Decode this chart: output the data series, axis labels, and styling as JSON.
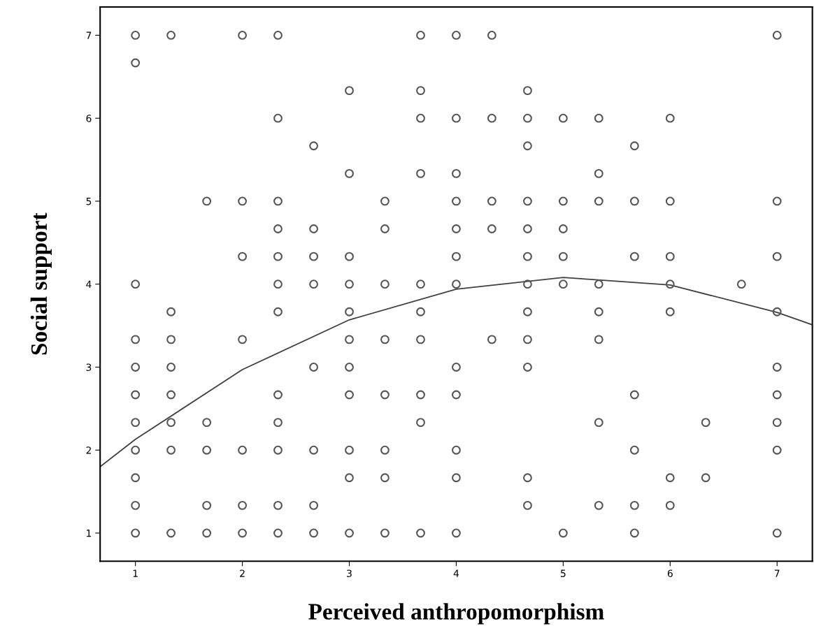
{
  "chart_data": {
    "type": "scatter",
    "xlabel": "Perceived anthropomorphism",
    "ylabel": "Social support",
    "xlim": [
      0.67,
      7.33
    ],
    "ylim": [
      0.66,
      7.34
    ],
    "xticks": [
      1,
      2,
      3,
      4,
      5,
      6,
      7
    ],
    "yticks": [
      1,
      2,
      3,
      4,
      5,
      6,
      7
    ],
    "grid": false,
    "legend": false,
    "marker": "circle",
    "series": [
      {
        "color": "#555555",
        "x": [
          1,
          1,
          1,
          1,
          1,
          1,
          1,
          1,
          1,
          1,
          1,
          1.333,
          1.333,
          1.333,
          1.333,
          1.333,
          1.333,
          1.333,
          1.333,
          1.667,
          1.667,
          1.667,
          1.667,
          1.667,
          2,
          2,
          2,
          2,
          2,
          2,
          2,
          2.333,
          2.333,
          2.333,
          2.333,
          2.333,
          2.333,
          2.333,
          2.333,
          2.333,
          2.333,
          2.333,
          2.333,
          2.667,
          2.667,
          2.667,
          2.667,
          2.667,
          2.667,
          2.667,
          2.667,
          3,
          3,
          3,
          3,
          3,
          3,
          3,
          3,
          3,
          3,
          3,
          3.333,
          3.333,
          3.333,
          3.333,
          3.333,
          3.333,
          3.333,
          3.333,
          3.667,
          3.667,
          3.667,
          3.667,
          3.667,
          3.667,
          3.667,
          3.667,
          3.667,
          3.667,
          4,
          4,
          4,
          4,
          4,
          4,
          4,
          4,
          4,
          4,
          4,
          4,
          4.333,
          4.333,
          4.333,
          4.333,
          4.333,
          4.667,
          4.667,
          4.667,
          4.667,
          4.667,
          4.667,
          4.667,
          4.667,
          4.667,
          4.667,
          4.667,
          4.667,
          5,
          5,
          5,
          5,
          5,
          5,
          5.333,
          5.333,
          5.333,
          5.333,
          5.333,
          5.333,
          5.333,
          5.333,
          5.667,
          5.667,
          5.667,
          5.667,
          5.667,
          5.667,
          5.667,
          6,
          6,
          6,
          6,
          6,
          6,
          6,
          6.333,
          6.333,
          6.667,
          7,
          7,
          7,
          7,
          7,
          7,
          7,
          7,
          7
        ],
        "values": [
          7,
          6.667,
          4,
          3.333,
          3,
          2.667,
          2.333,
          2,
          1.667,
          1.333,
          1,
          7,
          3.667,
          3.333,
          3,
          2.667,
          2.333,
          2,
          1,
          5,
          2.333,
          2,
          1.333,
          1,
          7,
          5,
          4.333,
          3.333,
          2,
          1.333,
          1,
          7,
          6,
          5,
          4.667,
          4.333,
          4,
          3.667,
          2.667,
          2.333,
          2,
          1.333,
          1,
          5.667,
          4.667,
          4.333,
          4,
          3,
          2,
          1.333,
          1,
          6.333,
          5.333,
          4.333,
          4,
          3.667,
          3.333,
          3,
          2.667,
          2,
          1.667,
          1,
          5,
          4.667,
          4,
          3.333,
          2.667,
          2,
          1.667,
          1,
          7,
          6.333,
          6,
          5.333,
          4,
          3.667,
          3.333,
          2.667,
          2.333,
          1,
          7,
          6,
          5.333,
          5,
          4.667,
          4.333,
          4,
          3,
          2.667,
          2,
          1.667,
          1,
          7,
          6,
          5,
          4.667,
          3.333,
          6.333,
          6,
          5.667,
          5,
          4.667,
          4.333,
          4,
          3.667,
          3.333,
          3,
          1.667,
          1.333,
          6,
          5,
          4.667,
          4.333,
          4,
          1,
          6,
          5.333,
          5,
          4,
          3.667,
          3.333,
          2.333,
          1.333,
          5.667,
          5,
          4.333,
          2.667,
          2,
          1.333,
          1,
          6,
          5,
          4.333,
          4,
          3.667,
          1.667,
          1.333,
          2.333,
          1.667,
          4,
          7,
          5,
          4.333,
          3.667,
          3,
          2.667,
          2.333,
          2,
          1
        ]
      },
      {
        "type": "line",
        "color": "#404040",
        "line_style": "solid",
        "marker": "none",
        "x": [
          0.67,
          1,
          2,
          3,
          4,
          5,
          6,
          7,
          7.33
        ],
        "values": [
          1.8,
          2.13,
          2.97,
          3.57,
          3.94,
          4.08,
          3.99,
          3.66,
          3.51
        ]
      }
    ]
  }
}
